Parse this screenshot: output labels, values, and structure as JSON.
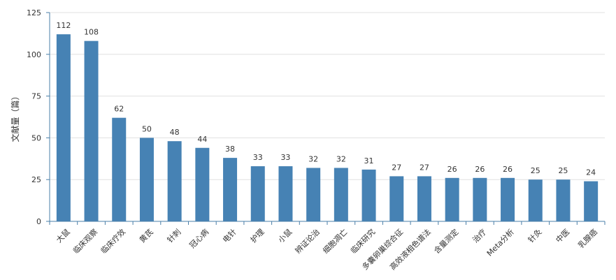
{
  "chart_data": {
    "type": "bar",
    "title": "",
    "xlabel": "",
    "ylabel": "文献量（篇）",
    "ylim": [
      0,
      125
    ],
    "yticks": [
      0,
      25,
      50,
      75,
      100,
      125
    ],
    "grid": true,
    "bar_color": "#4682b4",
    "categories": [
      "大鼠",
      "临床观察",
      "临床疗效",
      "黄芪",
      "针刺",
      "冠心病",
      "电针",
      "护理",
      "小鼠",
      "辨证论治",
      "细胞凋亡",
      "临床研究",
      "多囊卵巢综合征",
      "高效液相色谱法",
      "含量测定",
      "治疗",
      "Meta分析",
      "针灸",
      "中医",
      "乳腺癌"
    ],
    "values": [
      112,
      108,
      62,
      50,
      48,
      44,
      38,
      33,
      33,
      32,
      32,
      31,
      27,
      27,
      26,
      26,
      26,
      25,
      25,
      24
    ]
  }
}
